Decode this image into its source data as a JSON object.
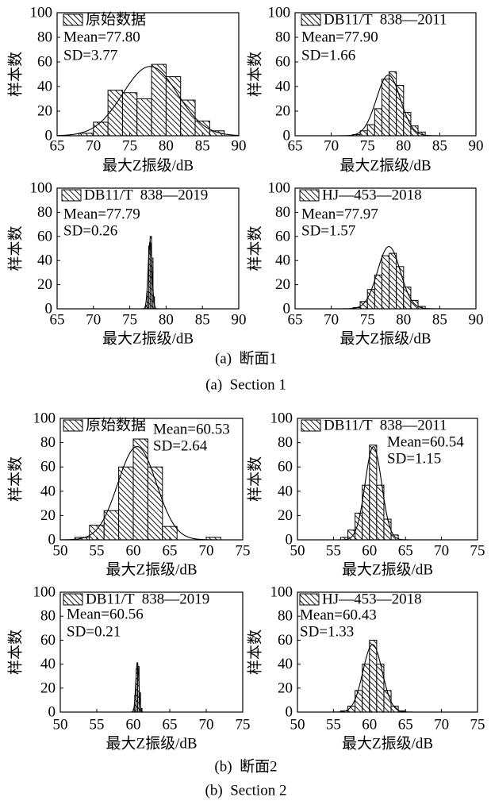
{
  "sections": [
    {
      "caption_zh": "(a)  断面1",
      "caption_en": "(a)  Section 1"
    },
    {
      "caption_zh": "(b)  断面2",
      "caption_en": "(b)  Section 2"
    }
  ],
  "chart_data": [
    {
      "type": "bar",
      "legend": "原始数据",
      "legend_placement": "top-left",
      "mean_label": "Mean=77.80",
      "sd_label": "SD=3.77",
      "normal_fit": {
        "mean": 77.8,
        "sd": 3.77
      },
      "bin_edges": [
        68,
        70,
        72,
        74,
        76,
        78,
        80,
        82,
        84,
        86,
        88
      ],
      "values": [
        2,
        11,
        37,
        35,
        30,
        58,
        48,
        29,
        12,
        4
      ],
      "xlabel": "最大Z振级/dB",
      "ylabel": "样本数",
      "xlim": [
        65,
        90
      ],
      "ylim": [
        0,
        100
      ],
      "xticks": [
        65,
        70,
        75,
        80,
        85,
        90
      ],
      "yticks": [
        0,
        20,
        40,
        60,
        80,
        100
      ],
      "grid": false
    },
    {
      "type": "bar",
      "legend": "DB11/T  838—2011",
      "legend_placement": "top-left",
      "mean_label": "Mean=77.90",
      "sd_label": "SD=1.66",
      "normal_fit": {
        "mean": 77.9,
        "sd": 1.66
      },
      "bin_edges": [
        73,
        74,
        75,
        76,
        77,
        78,
        79,
        80,
        81,
        82,
        83
      ],
      "values": [
        1,
        4,
        9,
        22,
        46,
        52,
        41,
        19,
        8,
        3
      ],
      "xlabel": "最大Z振级/dB",
      "ylabel": "样本数",
      "xlim": [
        65,
        90
      ],
      "ylim": [
        0,
        100
      ],
      "xticks": [
        65,
        70,
        75,
        80,
        85,
        90
      ],
      "yticks": [
        0,
        20,
        40,
        60,
        80,
        100
      ],
      "grid": false
    },
    {
      "type": "bar",
      "legend": "DB11/T  838—2019",
      "legend_placement": "top-left",
      "mean_label": "Mean=77.79",
      "sd_label": "SD=0.26",
      "normal_fit": {
        "mean": 77.79,
        "sd": 0.26
      },
      "bin_edges": [
        77.2,
        77.4,
        77.6,
        77.8,
        78.0,
        78.2,
        78.4
      ],
      "values": [
        3,
        14,
        52,
        60,
        42,
        10
      ],
      "xlabel": "最大Z振级/dB",
      "ylabel": "样本数",
      "xlim": [
        65,
        90
      ],
      "ylim": [
        0,
        100
      ],
      "xticks": [
        65,
        70,
        75,
        80,
        85,
        90
      ],
      "yticks": [
        0,
        20,
        40,
        60,
        80,
        100
      ],
      "grid": false
    },
    {
      "type": "bar",
      "legend": "HJ—453—2018",
      "legend_placement": "top-left",
      "mean_label": "Mean=77.97",
      "sd_label": "SD=1.57",
      "normal_fit": {
        "mean": 77.97,
        "sd": 1.57
      },
      "bin_edges": [
        73,
        74,
        75,
        76,
        77,
        78,
        79,
        80,
        81,
        82,
        83
      ],
      "values": [
        1,
        6,
        16,
        28,
        44,
        46,
        35,
        18,
        7,
        2
      ],
      "xlabel": "最大Z振级/dB",
      "ylabel": "样本数",
      "xlim": [
        65,
        90
      ],
      "ylim": [
        0,
        100
      ],
      "xticks": [
        65,
        70,
        75,
        80,
        85,
        90
      ],
      "yticks": [
        0,
        20,
        40,
        60,
        80,
        100
      ],
      "grid": false
    },
    {
      "type": "bar",
      "legend": "原始数据",
      "legend_placement": "top-left",
      "mean_label": "Mean=60.53",
      "sd_label": "SD=2.64",
      "normal_fit": {
        "mean": 60.53,
        "sd": 2.64
      },
      "bin_edges": [
        52,
        54,
        56,
        58,
        60,
        62,
        64,
        66,
        68,
        70,
        72
      ],
      "values": [
        2,
        12,
        24,
        60,
        83,
        60,
        11,
        0,
        0,
        2
      ],
      "xlabel": "最大Z振级/dB",
      "ylabel": "样本数",
      "xlim": [
        50,
        75
      ],
      "ylim": [
        0,
        100
      ],
      "xticks": [
        50,
        55,
        60,
        65,
        70,
        75
      ],
      "yticks": [
        0,
        20,
        40,
        60,
        80,
        100
      ],
      "grid": false
    },
    {
      "type": "bar",
      "legend": "DB11/T  838—2011",
      "legend_placement": "top-left",
      "mean_label": "Mean=60.54",
      "sd_label": "SD=1.15",
      "normal_fit": {
        "mean": 60.54,
        "sd": 1.15
      },
      "bin_edges": [
        56,
        57,
        58,
        59,
        60,
        61,
        62,
        63,
        64
      ],
      "values": [
        2,
        8,
        22,
        45,
        78,
        45,
        17,
        4
      ],
      "xlabel": "最大Z振级/dB",
      "ylabel": "样本数",
      "xlim": [
        50,
        75
      ],
      "ylim": [
        0,
        100
      ],
      "xticks": [
        50,
        55,
        60,
        65,
        70,
        75
      ],
      "yticks": [
        0,
        20,
        40,
        60,
        80,
        100
      ],
      "grid": false
    },
    {
      "type": "bar",
      "legend": "DB11/T  838—2019",
      "legend_placement": "top-left",
      "mean_label": "Mean=60.56",
      "sd_label": "SD=0.21",
      "normal_fit": {
        "mean": 60.56,
        "sd": 0.21
      },
      "bin_edges": [
        60.0,
        60.2,
        60.4,
        60.6,
        60.8,
        61.0,
        61.2
      ],
      "values": [
        2,
        14,
        36,
        38,
        16,
        3
      ],
      "xlabel": "最大Z振级/dB",
      "ylabel": "样本数",
      "xlim": [
        50,
        75
      ],
      "ylim": [
        0,
        100
      ],
      "xticks": [
        50,
        55,
        60,
        65,
        70,
        75
      ],
      "yticks": [
        0,
        20,
        40,
        60,
        80,
        100
      ],
      "grid": false
    },
    {
      "type": "bar",
      "legend": "HJ—453—2018",
      "legend_placement": "top-left",
      "mean_label": "Mean=60.43",
      "sd_label": "SD=1.33",
      "normal_fit": {
        "mean": 60.43,
        "sd": 1.33
      },
      "bin_edges": [
        56,
        57,
        58,
        59,
        60,
        61,
        62,
        63,
        64,
        65
      ],
      "values": [
        1,
        5,
        18,
        40,
        60,
        40,
        18,
        5,
        1
      ],
      "xlabel": "最大Z振级/dB",
      "ylabel": "样本数",
      "xlim": [
        50,
        75
      ],
      "ylim": [
        0,
        100
      ],
      "xticks": [
        50,
        55,
        60,
        65,
        70,
        75
      ],
      "yticks": [
        0,
        20,
        40,
        60,
        80,
        100
      ],
      "grid": false
    }
  ]
}
